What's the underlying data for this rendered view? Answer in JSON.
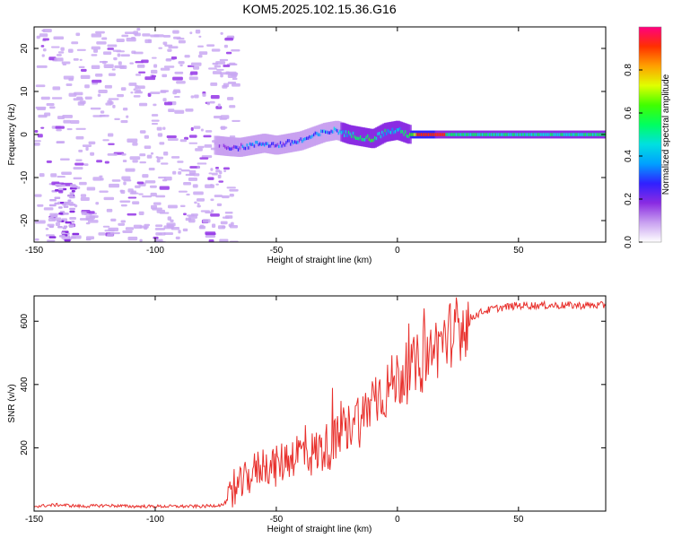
{
  "title": "KOM5.2025.102.15.36.G16",
  "chart_data": [
    {
      "type": "heatmap",
      "name": "spectrogram",
      "xlabel": "Height of straight line (km)",
      "ylabel": "Frequency (Hz)",
      "xlim": [
        -150,
        86
      ],
      "ylim": [
        -25,
        25
      ],
      "xticks": [
        -150,
        -100,
        -50,
        0,
        50
      ],
      "yticks": [
        -20,
        -10,
        0,
        10,
        20
      ],
      "colorbar": {
        "label": "Normalized spectral amplitude",
        "range": [
          0,
          1
        ],
        "ticks": [
          "0.0",
          "0.2",
          "0.4",
          "0.6",
          "0.8"
        ],
        "colors": [
          "#ffffff",
          "#c8a0f0",
          "#8a2be2",
          "#3020ff",
          "#00a0ff",
          "#00e0e0",
          "#00ff60",
          "#40ff00",
          "#e0ff00",
          "#ffa000",
          "#ff3000",
          "#ff0080"
        ]
      },
      "signal_trace": {
        "x": [
          -75,
          -70,
          -65,
          -60,
          -55,
          -50,
          -45,
          -40,
          -35,
          -30,
          -25,
          -20,
          -15,
          -10,
          -5,
          0,
          5,
          10,
          20,
          30,
          40,
          50,
          60,
          70,
          86
        ],
        "y": [
          -2.5,
          -2.8,
          -3,
          -2.5,
          -2,
          -2.5,
          -2,
          -1.5,
          -0.5,
          0.5,
          1,
          0,
          -0.5,
          -1,
          0.5,
          1,
          0,
          0,
          0,
          0,
          0,
          0,
          0,
          0,
          0
        ],
        "amplitude": [
          0.15,
          0.2,
          0.25,
          0.3,
          0.3,
          0.25,
          0.3,
          0.3,
          0.3,
          0.35,
          0.35,
          0.45,
          0.5,
          0.55,
          0.45,
          0.4,
          0.6,
          0.85,
          0.5,
          0.5,
          0.5,
          0.5,
          0.5,
          0.5,
          0.5
        ]
      }
    },
    {
      "type": "line",
      "name": "snr",
      "xlabel": "Height of straight line (km)",
      "ylabel": "SNR (v/v)",
      "xlim": [
        -150,
        86
      ],
      "ylim": [
        0,
        680
      ],
      "xticks": [
        -150,
        -100,
        -50,
        0,
        50
      ],
      "yticks": [
        200,
        400,
        600
      ],
      "color": "#e8302c",
      "series": {
        "name": "SNR",
        "x": [
          -150,
          -140,
          -130,
          -120,
          -110,
          -100,
          -90,
          -80,
          -72,
          -68,
          -65,
          -60,
          -55,
          -50,
          -45,
          -40,
          -35,
          -30,
          -25,
          -20,
          -18,
          -15,
          -12,
          -10,
          -5,
          0,
          5,
          10,
          15,
          20,
          25,
          30,
          35,
          40,
          45,
          50,
          60,
          70,
          80,
          86
        ],
        "y": [
          15,
          20,
          15,
          18,
          15,
          15,
          15,
          15,
          20,
          50,
          80,
          120,
          150,
          140,
          170,
          190,
          180,
          200,
          220,
          260,
          320,
          280,
          330,
          360,
          380,
          420,
          440,
          470,
          510,
          550,
          580,
          610,
          630,
          640,
          645,
          650,
          650,
          650,
          650,
          650
        ]
      }
    }
  ]
}
